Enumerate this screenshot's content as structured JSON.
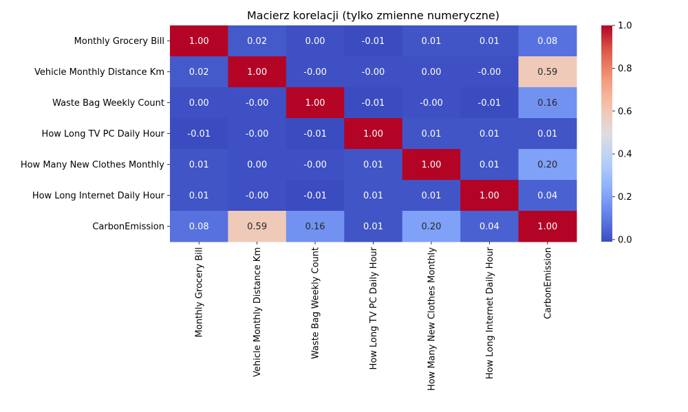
{
  "chart_data": {
    "type": "heatmap",
    "title": "Macierz korelacji (tylko zmienne numeryczne)",
    "xlabel": "",
    "ylabel": "",
    "labels": [
      "Monthly Grocery Bill",
      "Vehicle Monthly Distance Km",
      "Waste Bag Weekly Count",
      "How Long TV PC Daily Hour",
      "How Many New Clothes Monthly",
      "How Long Internet Daily Hour",
      "CarbonEmission"
    ],
    "matrix": [
      [
        1.0,
        0.02,
        0.0,
        -0.01,
        0.01,
        0.01,
        0.08
      ],
      [
        0.02,
        1.0,
        -0.0,
        -0.0,
        0.0,
        -0.0,
        0.59
      ],
      [
        0.0,
        -0.0,
        1.0,
        -0.01,
        -0.0,
        -0.01,
        0.16
      ],
      [
        -0.01,
        -0.0,
        -0.01,
        1.0,
        0.01,
        0.01,
        0.01
      ],
      [
        0.01,
        0.0,
        -0.0,
        0.01,
        1.0,
        0.01,
        0.2
      ],
      [
        0.01,
        -0.0,
        -0.01,
        0.01,
        0.01,
        1.0,
        0.04
      ],
      [
        0.08,
        0.59,
        0.16,
        0.01,
        0.2,
        0.04,
        1.0
      ]
    ],
    "cell_text": [
      [
        "1.00",
        "0.02",
        "0.00",
        "-0.01",
        "0.01",
        "0.01",
        "0.08"
      ],
      [
        "0.02",
        "1.00",
        "-0.00",
        "-0.00",
        "0.00",
        "-0.00",
        "0.59"
      ],
      [
        "0.00",
        "-0.00",
        "1.00",
        "-0.01",
        "-0.00",
        "-0.01",
        "0.16"
      ],
      [
        "-0.01",
        "-0.00",
        "-0.01",
        "1.00",
        "0.01",
        "0.01",
        "0.01"
      ],
      [
        "0.01",
        "0.00",
        "-0.00",
        "0.01",
        "1.00",
        "0.01",
        "0.20"
      ],
      [
        "0.01",
        "-0.00",
        "-0.01",
        "0.01",
        "0.01",
        "1.00",
        "0.04"
      ],
      [
        "0.08",
        "0.59",
        "0.16",
        "0.01",
        "0.20",
        "0.04",
        "1.00"
      ]
    ],
    "colormap": "coolwarm",
    "color_range": [
      -0.01,
      1.0
    ],
    "colorbar": {
      "ticks": [
        0.0,
        0.2,
        0.4,
        0.6,
        0.8,
        1.0
      ],
      "tick_labels": [
        "0.0",
        "0.2",
        "0.4",
        "0.6",
        "0.8",
        "1.0"
      ]
    },
    "grid": false
  }
}
